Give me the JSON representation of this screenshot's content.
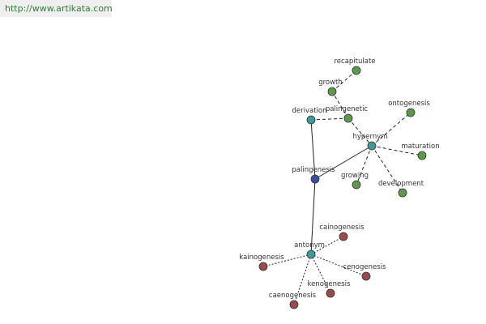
{
  "header": {
    "url": "http://www.artikata.com"
  },
  "nodes": [
    {
      "label": "recapitulate"
    },
    {
      "label": "growth"
    },
    {
      "label": "derivation"
    },
    {
      "label": "palingenetic"
    },
    {
      "label": "ontogenesis"
    },
    {
      "label": "hypernym"
    },
    {
      "label": "maturation"
    },
    {
      "label": "palingenesis"
    },
    {
      "label": "growing"
    },
    {
      "label": "development"
    },
    {
      "label": "cainogenesis"
    },
    {
      "label": "antonym"
    },
    {
      "label": "kainogenesis"
    },
    {
      "label": "cenogenesis"
    },
    {
      "label": "kenogenesis"
    },
    {
      "label": "caenogenesis"
    }
  ]
}
